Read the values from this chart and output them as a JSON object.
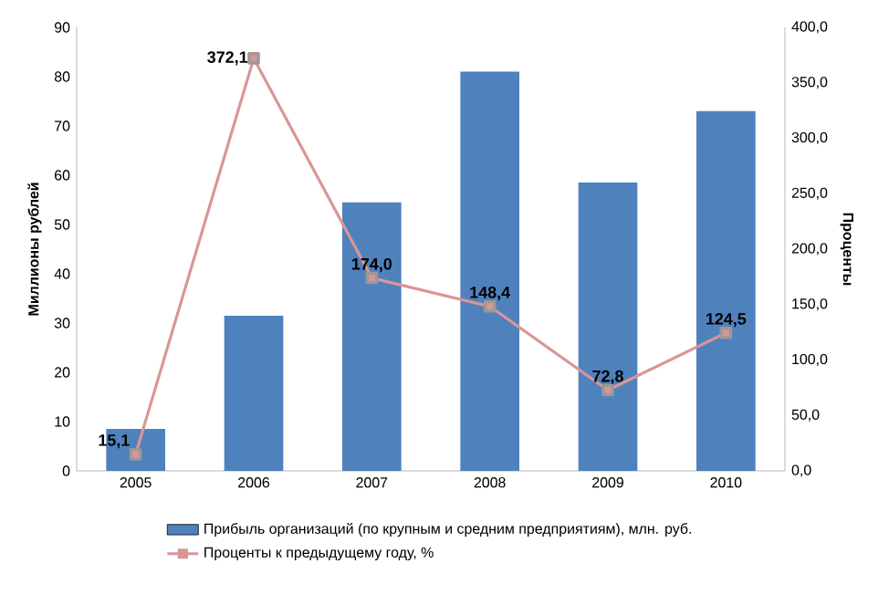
{
  "chart_data": {
    "type": "bar",
    "categories": [
      "2005",
      "2006",
      "2007",
      "2008",
      "2009",
      "2010"
    ],
    "series": [
      {
        "name": "Прибыль организаций (по крупным и средним предприятиям), млн. руб.",
        "color": "#4f81bd",
        "values": [
          8.5,
          31.5,
          54.5,
          81,
          58.5,
          73
        ]
      },
      {
        "name": "Проценты к предыдущему году, %",
        "type": "line",
        "axis": "y2",
        "color": "#d99694",
        "marker": "square",
        "values": [
          15.1,
          372.1,
          174.0,
          148.4,
          72.8,
          124.5
        ],
        "value_labels": [
          "15,1",
          "372,1",
          "174,0",
          "148,4",
          "72,8",
          "124,5"
        ]
      }
    ],
    "ylabel": "Миллионы рублей",
    "y2label": "Проценты",
    "ylim": [
      0,
      90
    ],
    "yticks": [
      0,
      10,
      20,
      30,
      40,
      50,
      60,
      70,
      80,
      90
    ],
    "y2lim": [
      0,
      400
    ],
    "y2ticks": [
      {
        "value": 0,
        "label": "0,0"
      },
      {
        "value": 50,
        "label": "50,0"
      },
      {
        "value": 100,
        "label": "100,0"
      },
      {
        "value": 150,
        "label": "150,0"
      },
      {
        "value": 200,
        "label": "200,0"
      },
      {
        "value": 250,
        "label": "250,0"
      },
      {
        "value": 300,
        "label": "300,0"
      },
      {
        "value": 350,
        "label": "350,0"
      },
      {
        "value": 400,
        "label": "400,0"
      }
    ],
    "legend": "bottom"
  }
}
